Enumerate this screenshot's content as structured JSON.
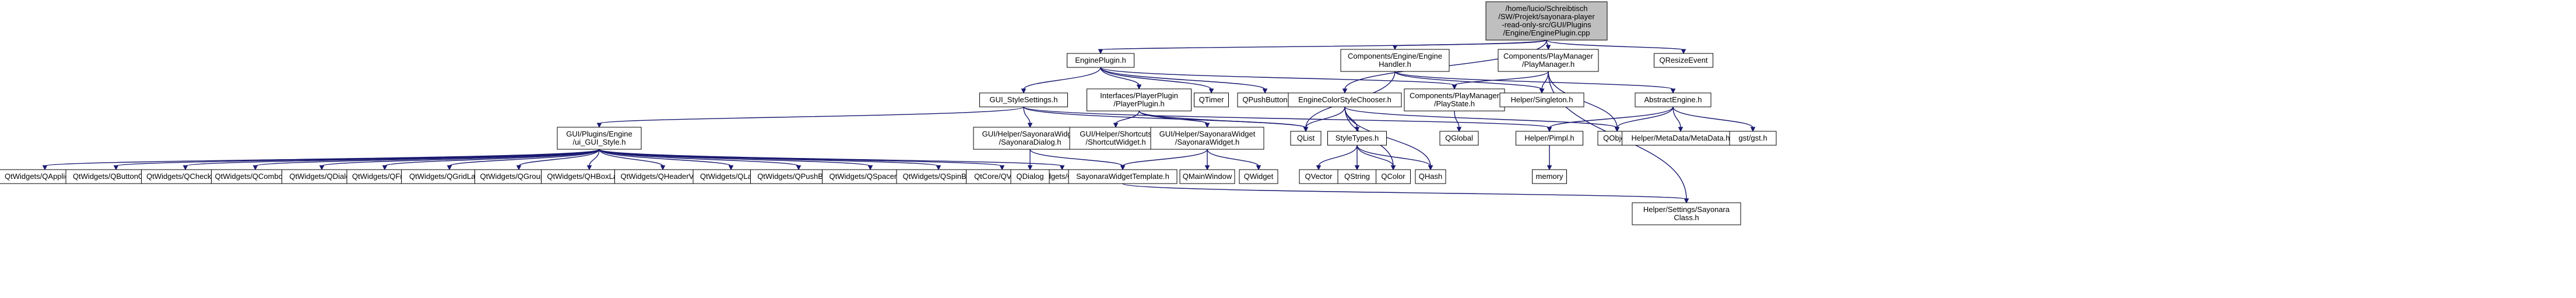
{
  "diagram": {
    "title": "",
    "colors": {
      "edge": "#191970",
      "node_border": "#000000",
      "node_fill": "#ffffff",
      "root_fill": "#bfbfbf",
      "missing_border": "#ff0000"
    },
    "nodes": [
      {
        "id": "root",
        "lines": [
          "/home/lucio/Schreibtisch",
          "/SW/Projekt/sayonara-player",
          "-read-only-src/GUI/Plugins",
          "/Engine/EnginePlugin.cpp"
        ],
        "style": "root"
      },
      {
        "id": "engineplugin_h",
        "lines": [
          "EnginePlugin.h"
        ]
      },
      {
        "id": "enginehandler_h",
        "lines": [
          "Components/Engine/Engine",
          "Handler.h"
        ]
      },
      {
        "id": "playmanager_h",
        "lines": [
          "Components/PlayManager",
          "/PlayManager.h"
        ]
      },
      {
        "id": "qresizeevent",
        "lines": [
          "QResizeEvent"
        ],
        "style": "gray"
      },
      {
        "id": "stylesettings_h",
        "lines": [
          "GUI_StyleSettings.h"
        ]
      },
      {
        "id": "playerplugin_h",
        "lines": [
          "Interfaces/PlayerPlugin",
          "/PlayerPlugin.h"
        ]
      },
      {
        "id": "qtimer",
        "lines": [
          "QTimer"
        ],
        "style": "gray"
      },
      {
        "id": "qpushbutton",
        "lines": [
          "QPushButton"
        ],
        "style": "gray"
      },
      {
        "id": "enginecolorstylechooser_h",
        "lines": [
          "EngineColorStyleChooser.h"
        ]
      },
      {
        "id": "playstate_h",
        "lines": [
          "Components/PlayManager",
          "/PlayState.h"
        ]
      },
      {
        "id": "singleton_h",
        "lines": [
          "Helper/Singleton.h"
        ]
      },
      {
        "id": "abstractengine_h",
        "lines": [
          "AbstractEngine.h"
        ]
      },
      {
        "id": "ui_gui_style_h",
        "lines": [
          "GUI/Plugins/Engine",
          "/ui_GUI_Style.h"
        ]
      },
      {
        "id": "sayonaradialog_h",
        "lines": [
          "GUI/Helper/SayonaraWidget",
          "/SayonaraDialog.h"
        ]
      },
      {
        "id": "shortcutwidget_h",
        "lines": [
          "GUI/Helper/Shortcuts",
          "/ShortcutWidget.h"
        ]
      },
      {
        "id": "sayonarawidget_h",
        "lines": [
          "GUI/Helper/SayonaraWidget",
          "/SayonaraWidget.h"
        ]
      },
      {
        "id": "qlist",
        "lines": [
          "QList"
        ],
        "style": "gray"
      },
      {
        "id": "styletypes_h",
        "lines": [
          "StyleTypes.h"
        ]
      },
      {
        "id": "qglobal",
        "lines": [
          "QGlobal"
        ],
        "style": "gray"
      },
      {
        "id": "helperpimpl_h",
        "lines": [
          "Helper/Pimpl.h"
        ]
      },
      {
        "id": "qobject",
        "lines": [
          "QObject"
        ],
        "style": "gray"
      },
      {
        "id": "metadata_h",
        "lines": [
          "Helper/MetaData/MetaData.h"
        ],
        "style": "missing"
      },
      {
        "id": "gst_h",
        "lines": [
          "gst/gst.h"
        ],
        "style": "gray"
      },
      {
        "id": "qapplication",
        "lines": [
          "QtWidgets/QApplication"
        ],
        "style": "gray"
      },
      {
        "id": "qbuttongroup",
        "lines": [
          "QtWidgets/QButtonGroup"
        ],
        "style": "gray"
      },
      {
        "id": "qcheckbox",
        "lines": [
          "QtWidgets/QCheckBox"
        ],
        "style": "gray"
      },
      {
        "id": "qcombobox",
        "lines": [
          "QtWidgets/QComboBox"
        ],
        "style": "gray"
      },
      {
        "id": "qdialog_w",
        "lines": [
          "QtWidgets/QDialog"
        ],
        "style": "gray"
      },
      {
        "id": "qframe",
        "lines": [
          "QtWidgets/QFrame"
        ],
        "style": "gray"
      },
      {
        "id": "qgridlayout",
        "lines": [
          "QtWidgets/QGridLayout"
        ],
        "style": "gray"
      },
      {
        "id": "qgroupbox",
        "lines": [
          "QtWidgets/QGroupBox"
        ],
        "style": "gray"
      },
      {
        "id": "qhboxlayout",
        "lines": [
          "QtWidgets/QHBoxLayout"
        ],
        "style": "gray"
      },
      {
        "id": "qheaderview",
        "lines": [
          "QtWidgets/QHeaderView"
        ],
        "style": "gray"
      },
      {
        "id": "qlabel",
        "lines": [
          "QtWidgets/QLabel"
        ],
        "style": "gray"
      },
      {
        "id": "qpushbutton_w",
        "lines": [
          "QtWidgets/QPushButton"
        ],
        "style": "gray"
      },
      {
        "id": "qspaceritem",
        "lines": [
          "QtWidgets/QSpacerItem"
        ],
        "style": "gray"
      },
      {
        "id": "qspinbox",
        "lines": [
          "QtWidgets/QSpinBox"
        ],
        "style": "gray"
      },
      {
        "id": "qvariant",
        "lines": [
          "QtCore/QVariant"
        ],
        "style": "gray"
      },
      {
        "id": "qaction",
        "lines": [
          "QtWidgets/QAction"
        ],
        "style": "gray"
      },
      {
        "id": "qdialog",
        "lines": [
          "QDialog"
        ],
        "style": "gray"
      },
      {
        "id": "sayonarawidgettemplate_h",
        "lines": [
          "SayonaraWidgetTemplate.h"
        ]
      },
      {
        "id": "qmainwindow",
        "lines": [
          "QMainWindow"
        ],
        "style": "gray"
      },
      {
        "id": "qwidget",
        "lines": [
          "QWidget"
        ],
        "style": "gray"
      },
      {
        "id": "qvector",
        "lines": [
          "QVector"
        ],
        "style": "gray"
      },
      {
        "id": "qstring",
        "lines": [
          "QString"
        ],
        "style": "gray"
      },
      {
        "id": "qcolor",
        "lines": [
          "QColor"
        ],
        "style": "gray"
      },
      {
        "id": "qhash",
        "lines": [
          "QHash"
        ],
        "style": "gray"
      },
      {
        "id": "memory",
        "lines": [
          "memory"
        ],
        "style": "gray"
      },
      {
        "id": "sayonaraclass_h",
        "lines": [
          "Helper/Settings/Sayonara",
          "Class.h"
        ]
      }
    ],
    "edges": [
      [
        "root",
        "engineplugin_h"
      ],
      [
        "root",
        "enginehandler_h"
      ],
      [
        "root",
        "playmanager_h"
      ],
      [
        "root",
        "qresizeevent"
      ],
      [
        "root",
        "enginecolorstylechooser_h"
      ],
      [
        "engineplugin_h",
        "stylesettings_h"
      ],
      [
        "engineplugin_h",
        "playerplugin_h"
      ],
      [
        "engineplugin_h",
        "qtimer"
      ],
      [
        "engineplugin_h",
        "qpushbutton"
      ],
      [
        "engineplugin_h",
        "playstate_h"
      ],
      [
        "enginehandler_h",
        "qlist"
      ],
      [
        "enginehandler_h",
        "singleton_h"
      ],
      [
        "enginehandler_h",
        "abstractengine_h"
      ],
      [
        "playmanager_h",
        "playstate_h"
      ],
      [
        "playmanager_h",
        "singleton_h"
      ],
      [
        "playmanager_h",
        "qobject"
      ],
      [
        "playmanager_h",
        "sayonaraclass_h"
      ],
      [
        "stylesettings_h",
        "ui_gui_style_h"
      ],
      [
        "stylesettings_h",
        "sayonaradialog_h"
      ],
      [
        "stylesettings_h",
        "qlist"
      ],
      [
        "stylesettings_h",
        "helperpimpl_h"
      ],
      [
        "playerplugin_h",
        "shortcutwidget_h"
      ],
      [
        "playerplugin_h",
        "sayonarawidget_h"
      ],
      [
        "playerplugin_h",
        "qlist"
      ],
      [
        "enginecolorstylechooser_h",
        "qlist"
      ],
      [
        "enginecolorstylechooser_h",
        "styletypes_h"
      ],
      [
        "enginecolorstylechooser_h",
        "qcolor"
      ],
      [
        "enginecolorstylechooser_h",
        "qhash"
      ],
      [
        "enginecolorstylechooser_h",
        "qobject"
      ],
      [
        "playstate_h",
        "qglobal"
      ],
      [
        "abstractengine_h",
        "qobject"
      ],
      [
        "abstractengine_h",
        "metadata_h"
      ],
      [
        "abstractengine_h",
        "gst_h"
      ],
      [
        "abstractengine_h",
        "helperpimpl_h"
      ],
      [
        "ui_gui_style_h",
        "qapplication"
      ],
      [
        "ui_gui_style_h",
        "qbuttongroup"
      ],
      [
        "ui_gui_style_h",
        "qcheckbox"
      ],
      [
        "ui_gui_style_h",
        "qcombobox"
      ],
      [
        "ui_gui_style_h",
        "qdialog_w"
      ],
      [
        "ui_gui_style_h",
        "qframe"
      ],
      [
        "ui_gui_style_h",
        "qgridlayout"
      ],
      [
        "ui_gui_style_h",
        "qgroupbox"
      ],
      [
        "ui_gui_style_h",
        "qhboxlayout"
      ],
      [
        "ui_gui_style_h",
        "qheaderview"
      ],
      [
        "ui_gui_style_h",
        "qlabel"
      ],
      [
        "ui_gui_style_h",
        "qpushbutton_w"
      ],
      [
        "ui_gui_style_h",
        "qspaceritem"
      ],
      [
        "ui_gui_style_h",
        "qspinbox"
      ],
      [
        "ui_gui_style_h",
        "qvariant"
      ],
      [
        "ui_gui_style_h",
        "qaction"
      ],
      [
        "sayonaradialog_h",
        "qdialog"
      ],
      [
        "sayonaradialog_h",
        "sayonarawidgettemplate_h"
      ],
      [
        "sayonarawidget_h",
        "sayonarawidgettemplate_h"
      ],
      [
        "sayonarawidget_h",
        "qmainwindow"
      ],
      [
        "sayonarawidget_h",
        "qwidget"
      ],
      [
        "styletypes_h",
        "qvector"
      ],
      [
        "styletypes_h",
        "qstring"
      ],
      [
        "styletypes_h",
        "qcolor"
      ],
      [
        "styletypes_h",
        "qhash"
      ],
      [
        "helperpimpl_h",
        "memory"
      ],
      [
        "sayonarawidgettemplate_h",
        "sayonaraclass_h"
      ]
    ]
  }
}
